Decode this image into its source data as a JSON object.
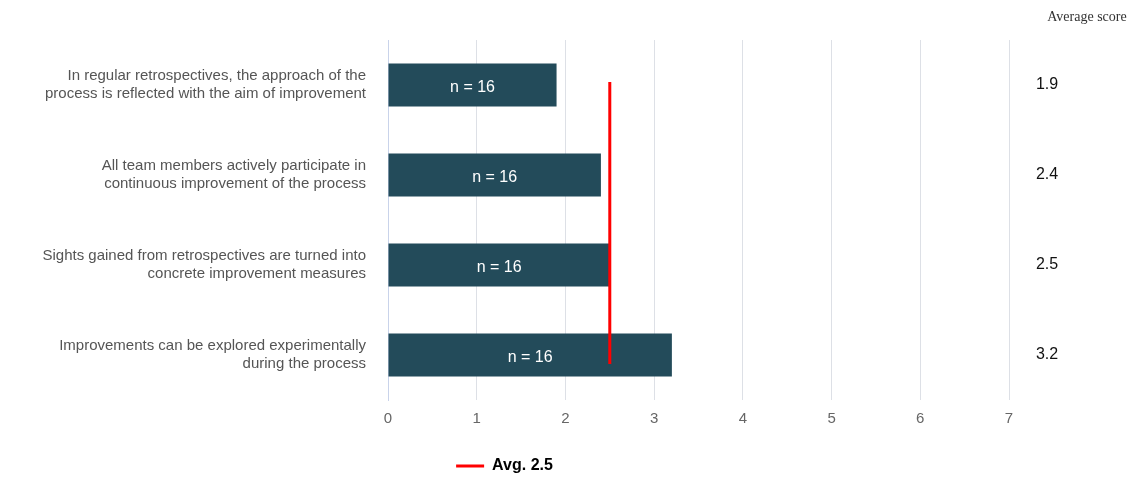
{
  "chart_data": {
    "type": "bar",
    "orientation": "horizontal",
    "categories": [
      "In regular retrospectives, the approach of the process is reflected with the aim of improvement",
      "All team members actively participate in continuous improvement of the process",
      "Sights gained from retrospectives are turned into concrete improvement measures",
      "Improvements can be explored experimentally during the process"
    ],
    "values": [
      1.9,
      2.4,
      2.5,
      3.2
    ],
    "color": "#234b5a",
    "data_labels": true,
    "annotations": [
      "Average score",
      "n = 16",
      "n = 16",
      "n = 16",
      "n = 16"
    ],
    "xlim": [
      0,
      7
    ],
    "xticks": [
      0,
      1,
      2,
      3,
      4,
      5,
      6,
      7
    ],
    "grid": "x",
    "legend": "bottom",
    "ref_lines": [
      {
        "axis": "x",
        "value": 2.5,
        "label": "Avg. 2.5",
        "color": "#ff0000"
      }
    ]
  }
}
